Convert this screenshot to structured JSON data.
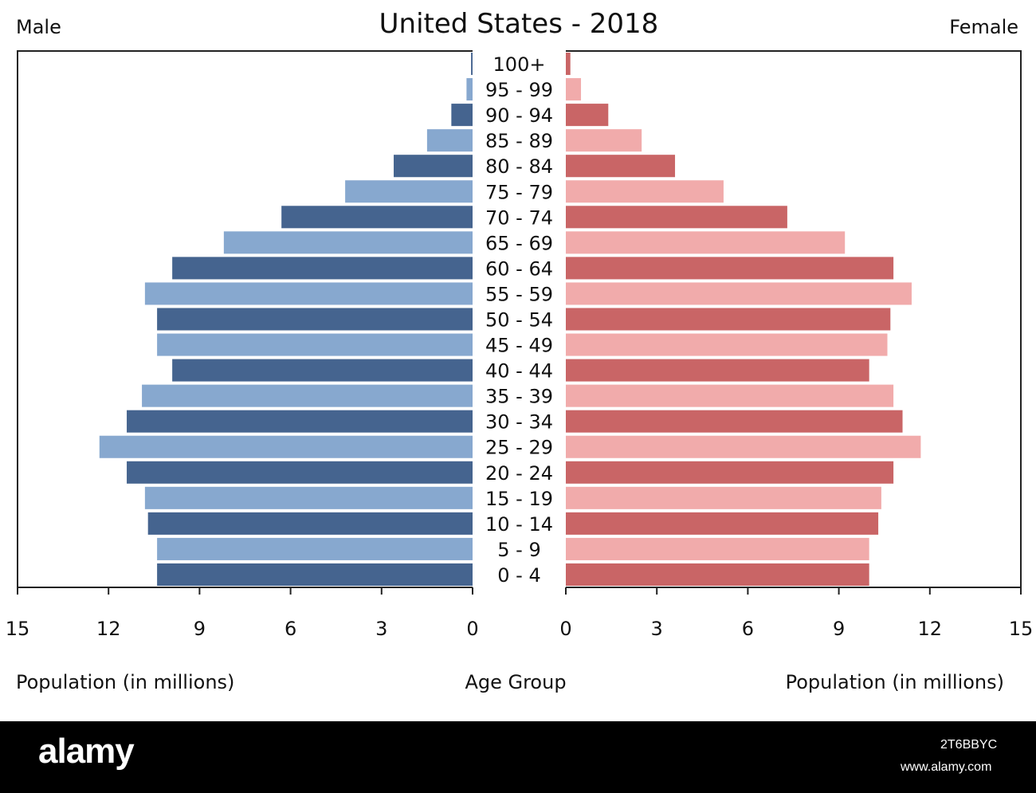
{
  "chart_data": {
    "type": "bar",
    "title": "United States - 2018",
    "left_panel_label": "Male",
    "right_panel_label": "Female",
    "xlabel_left": "Population (in millions)",
    "xlabel_right": "Population (in millions)",
    "center_label": "Age Group",
    "xlim": [
      0,
      15
    ],
    "x_ticks": [
      0,
      3,
      6,
      9,
      12,
      15
    ],
    "categories": [
      "100+",
      "95 - 99",
      "90 - 94",
      "85 - 89",
      "80 - 84",
      "75 - 79",
      "70 - 74",
      "65 - 69",
      "60 - 64",
      "55 - 59",
      "50 - 54",
      "45 - 49",
      "40 - 44",
      "35 - 39",
      "30 - 34",
      "25 - 29",
      "20 - 24",
      "15 - 19",
      "10 - 14",
      "5 - 9",
      "0 - 4"
    ],
    "series": [
      {
        "name": "Male",
        "values": [
          0.05,
          0.2,
          0.7,
          1.5,
          2.6,
          4.2,
          6.3,
          8.2,
          9.9,
          10.8,
          10.4,
          10.4,
          9.9,
          10.9,
          11.4,
          12.3,
          11.4,
          10.8,
          10.7,
          10.4,
          10.4
        ]
      },
      {
        "name": "Female",
        "values": [
          0.15,
          0.5,
          1.4,
          2.5,
          3.6,
          5.2,
          7.3,
          9.2,
          10.8,
          11.4,
          10.7,
          10.6,
          10.0,
          10.8,
          11.1,
          11.7,
          10.8,
          10.4,
          10.3,
          10.0,
          10.0
        ]
      }
    ],
    "colors": {
      "male_dark": "#45648f",
      "male_light": "#87a8cf",
      "female_dark": "#c96566",
      "female_light": "#f1abab"
    },
    "grid": false
  },
  "footer": {
    "brand": "alamy",
    "image_id": "2T6BBYC",
    "site": "www.alamy.com"
  }
}
